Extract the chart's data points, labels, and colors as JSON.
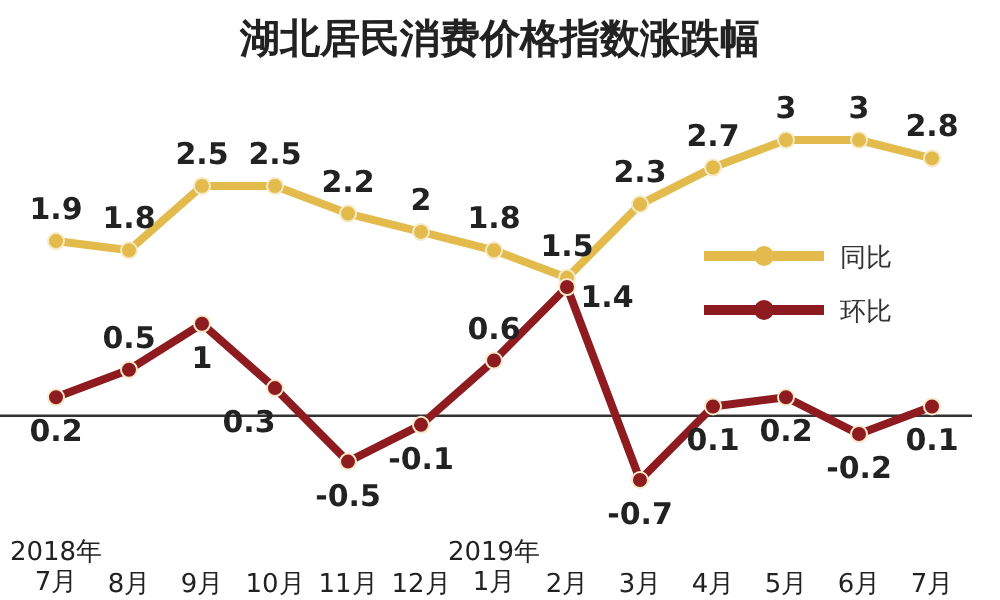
{
  "chart_data": {
    "type": "line",
    "title": "湖北居民消费价格指数涨跌幅",
    "categories": [
      "2018年\n7月",
      "8月",
      "9月",
      "10月",
      "11月",
      "12月",
      "2019年\n1月",
      "2月",
      "3月",
      "4月",
      "5月",
      "6月",
      "7月"
    ],
    "series": [
      {
        "name": "同比",
        "color": "#e2bb4c",
        "values": [
          1.9,
          1.8,
          2.5,
          2.5,
          2.2,
          2,
          1.8,
          1.5,
          2.3,
          2.7,
          3,
          3,
          2.8
        ]
      },
      {
        "name": "环比",
        "color": "#8e1b1f",
        "values": [
          0.2,
          0.5,
          1,
          0.3,
          -0.5,
          -0.1,
          0.6,
          1.4,
          -0.7,
          0.1,
          0.2,
          -0.2,
          0.1
        ]
      }
    ],
    "ref_lines": [
      {
        "axis": "y",
        "value": 0,
        "color": "#333333"
      }
    ],
    "data_labels": true,
    "marker": "circle",
    "line_style": "solid",
    "legend": "right",
    "grid": false
  }
}
